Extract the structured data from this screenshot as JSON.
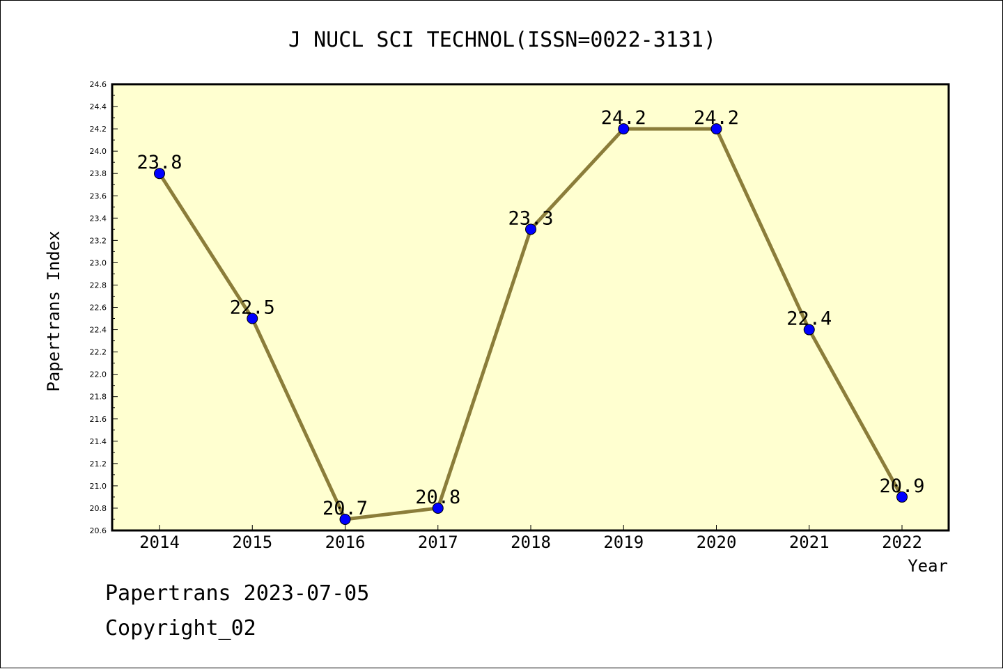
{
  "chart_data": {
    "type": "line",
    "title": "J NUCL SCI TECHNOL(ISSN=0022-3131)",
    "xlabel": "Year",
    "ylabel": "Papertrans Index",
    "categories": [
      "2014",
      "2015",
      "2016",
      "2017",
      "2018",
      "2019",
      "2020",
      "2021",
      "2022"
    ],
    "values": [
      23.8,
      22.5,
      20.7,
      20.8,
      23.3,
      24.2,
      24.2,
      22.4,
      20.9
    ],
    "data_labels": [
      "23.8",
      "22.5",
      "20.7",
      "20.8",
      "23.3",
      "24.2",
      "24.2",
      "22.4",
      "20.9"
    ],
    "ylim": [
      20.6,
      24.6
    ],
    "yticks": [
      "20.6",
      "20.8",
      "21.0",
      "21.2",
      "21.4",
      "21.6",
      "21.8",
      "22.0",
      "22.2",
      "22.4",
      "22.6",
      "22.8",
      "23.0",
      "23.2",
      "23.4",
      "23.6",
      "23.8",
      "24.0",
      "24.2",
      "24.4",
      "24.6"
    ],
    "grid": false,
    "colors": {
      "line": "#8b7d3a",
      "marker": "#0000ff",
      "plot_background": "#ffffd0",
      "axes": "#000000"
    }
  },
  "footer": {
    "line1": "Papertrans 2023-07-05",
    "line2": "Copyright_02"
  }
}
